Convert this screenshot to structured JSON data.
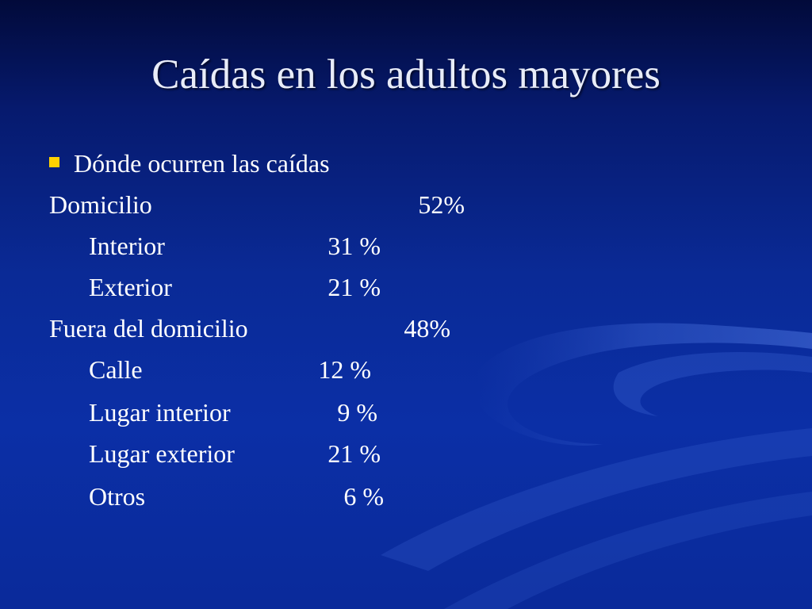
{
  "slide": {
    "title": "Caídas en los adultos mayores",
    "bullet": "Dónde ocurren las caídas",
    "rows": [
      {
        "label": "Domicilio",
        "value": "52%"
      },
      {
        "label": "Interior",
        "value": "31 %"
      },
      {
        "label": "Exterior",
        "value": "21 %"
      },
      {
        "label": "Fuera del domicilio",
        "value": "48%"
      },
      {
        "label": "Calle",
        "value": "12 %"
      },
      {
        "label": "Lugar interior",
        "value": "9 %"
      },
      {
        "label": "Lugar exterior",
        "value": "21 %"
      },
      {
        "label": "Otros",
        "value": "6 %"
      }
    ]
  },
  "colors": {
    "background": "#0b2fa6",
    "bullet_marker": "#ffd200",
    "title_text": "#e8ecf8"
  }
}
